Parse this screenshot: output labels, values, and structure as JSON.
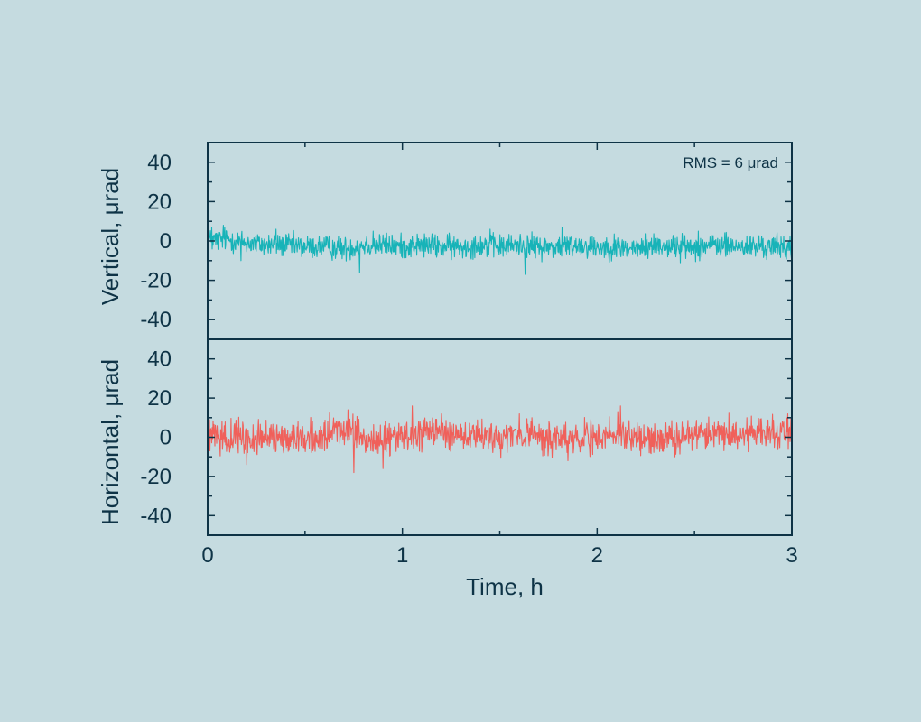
{
  "chart_data": [
    {
      "type": "line",
      "panel": "top",
      "ylabel": "Vertical, μrad",
      "annotation": "RMS = 6 μrad",
      "xlim": [
        0,
        3
      ],
      "ylim": [
        -50,
        50
      ],
      "y_ticks": [
        "40",
        "20",
        "0",
        "-20",
        "-40"
      ],
      "series": [
        {
          "color": "#17b3b8",
          "x": [
            0,
            0.1,
            0.2,
            0.3,
            0.4,
            0.5,
            0.6,
            0.7,
            0.8,
            0.9,
            1.0,
            1.1,
            1.2,
            1.3,
            1.4,
            1.5,
            1.6,
            1.7,
            1.8,
            1.9,
            2.0,
            2.1,
            2.2,
            2.3,
            2.4,
            2.5,
            2.6,
            2.7,
            2.8,
            2.9,
            3.0
          ],
          "values": [
            0,
            1,
            -1,
            -2,
            -2,
            -3,
            -3,
            -4,
            -2,
            -2,
            -3,
            -2,
            -3,
            -3,
            -2,
            -3,
            -2,
            -3,
            -3,
            -2,
            -3,
            -3,
            -4,
            -2,
            -3,
            -3,
            -2,
            -3,
            -3,
            -3,
            -3
          ],
          "noise_amplitude": 3
        }
      ],
      "spikes": [
        {
          "x": 0.02,
          "y": 7
        },
        {
          "x": 0.08,
          "y": 8
        },
        {
          "x": 0.17,
          "y": -10
        },
        {
          "x": 0.35,
          "y": 6
        },
        {
          "x": 0.78,
          "y": -16
        },
        {
          "x": 0.85,
          "y": 5
        },
        {
          "x": 1.45,
          "y": 6
        },
        {
          "x": 1.63,
          "y": -17
        },
        {
          "x": 1.82,
          "y": 7
        },
        {
          "x": 2.1,
          "y": -8
        },
        {
          "x": 2.52,
          "y": 5
        }
      ]
    },
    {
      "type": "line",
      "panel": "bottom",
      "ylabel": "Horizontal, μrad",
      "xlabel": "Time, h",
      "xlim": [
        0,
        3
      ],
      "ylim": [
        -50,
        50
      ],
      "x_ticks": [
        "0",
        "1",
        "2",
        "3"
      ],
      "y_ticks": [
        "40",
        "20",
        "0",
        "-20",
        "-40"
      ],
      "series": [
        {
          "color": "#f0605a",
          "x": [
            0,
            0.1,
            0.2,
            0.3,
            0.4,
            0.5,
            0.6,
            0.7,
            0.8,
            0.9,
            1.0,
            1.1,
            1.2,
            1.3,
            1.4,
            1.5,
            1.6,
            1.7,
            1.8,
            1.9,
            2.0,
            2.1,
            2.2,
            2.3,
            2.4,
            2.5,
            2.6,
            2.7,
            2.8,
            2.9,
            3.0
          ],
          "values": [
            0,
            0,
            -1,
            0,
            0,
            0,
            0,
            5,
            -2,
            -1,
            0,
            1,
            3,
            0,
            0,
            0,
            2,
            0,
            -1,
            0,
            -1,
            2,
            0,
            -1,
            1,
            1,
            2,
            2,
            2,
            3,
            4
          ],
          "noise_amplitude": 4
        }
      ],
      "spikes": [
        {
          "x": 0.01,
          "y": 9
        },
        {
          "x": 0.2,
          "y": -14
        },
        {
          "x": 0.72,
          "y": 14
        },
        {
          "x": 0.75,
          "y": -18
        },
        {
          "x": 0.9,
          "y": -16
        },
        {
          "x": 1.05,
          "y": 16
        },
        {
          "x": 1.2,
          "y": 12
        },
        {
          "x": 1.6,
          "y": 12
        },
        {
          "x": 1.85,
          "y": -12
        },
        {
          "x": 2.12,
          "y": 16
        },
        {
          "x": 2.4,
          "y": -10
        },
        {
          "x": 2.77,
          "y": 10
        },
        {
          "x": 2.98,
          "y": 12
        }
      ]
    }
  ]
}
